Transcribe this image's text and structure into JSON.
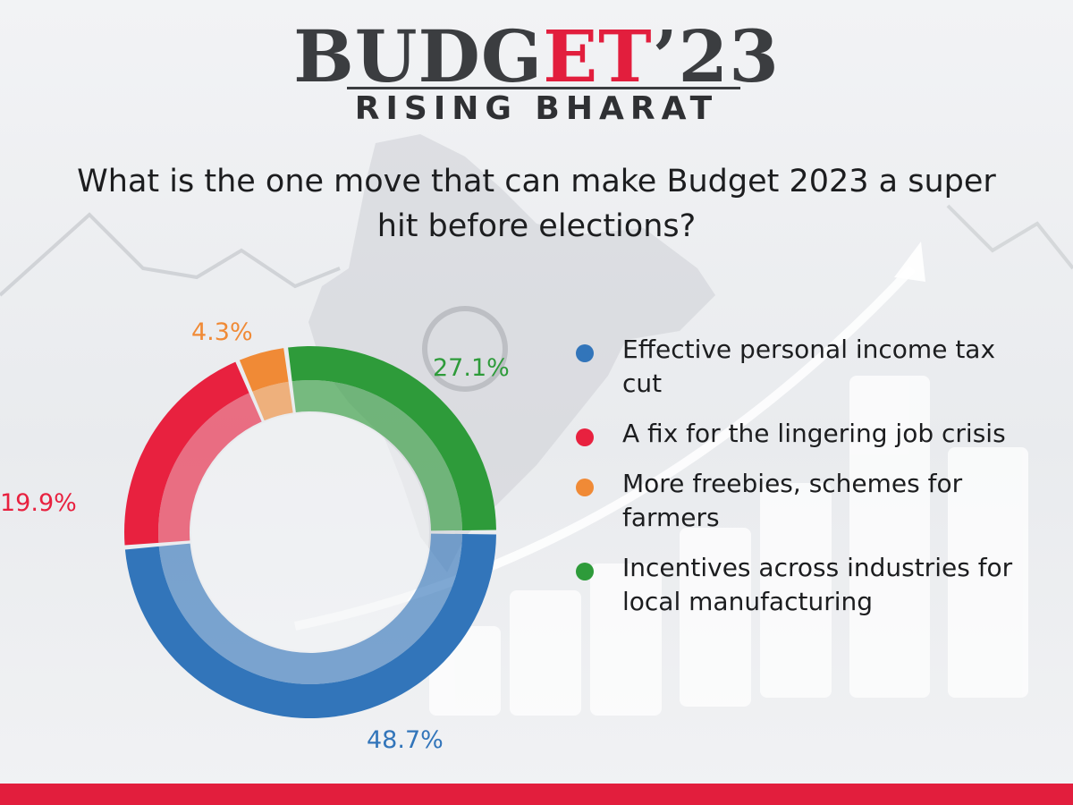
{
  "header": {
    "title_a": "BUDG",
    "title_b": "ET",
    "title_c": "’23",
    "subtitle": "RISING BHARAT"
  },
  "question": "What is the one move that can make Budget 2023 a super hit before elections?",
  "colors": {
    "accent": "#e21e3d",
    "blue": "#3275ba",
    "red": "#e8213f",
    "orange": "#f08a36",
    "green": "#2e9b3a"
  },
  "chart_data": {
    "type": "pie",
    "categories": [
      "Effective personal income tax cut",
      "A fix for the lingering job crisis",
      "More freebies, schemes for farmers",
      "Incentives across industries for local manufacturing"
    ],
    "values": [
      48.7,
      19.9,
      4.3,
      27.1
    ],
    "value_labels": [
      "48.7%",
      "19.9%",
      "4.3%",
      "27.1%"
    ],
    "colors": [
      "#3275ba",
      "#e8213f",
      "#f08a36",
      "#2e9b3a"
    ],
    "donut": true,
    "legend_position": "right"
  }
}
